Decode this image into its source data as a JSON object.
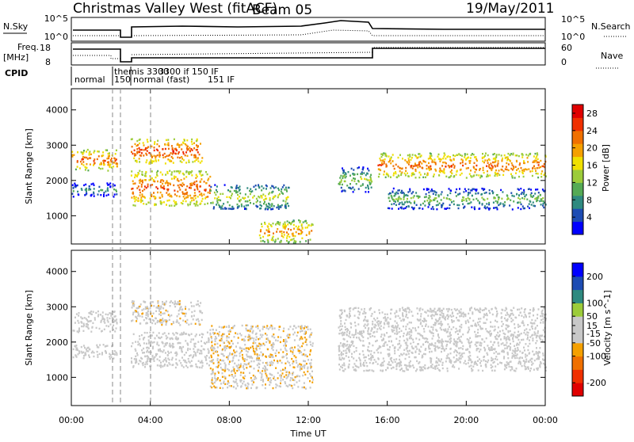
{
  "header": {
    "title": "Christmas Valley West (fitACF)",
    "beam": "Beam 05",
    "date": "19/May/2011"
  },
  "noise_panel": {
    "left_label": "N.Sky",
    "left_ticks": [
      "10^5",
      "10^0"
    ],
    "right_ticks": [
      "10^5",
      "10^0"
    ],
    "right_label": "N.Search"
  },
  "freq_panel": {
    "left_label_1": "Freq.",
    "left_label_2": "[MHz]",
    "left_ticks": [
      "18",
      "8"
    ],
    "right_ticks": [
      "60",
      "0"
    ],
    "right_label": "Nave"
  },
  "cpid": {
    "label": "CPID",
    "segments": [
      "normal",
      "themis 3300",
      "150",
      "normal (fast)",
      "3300 if 150 IF",
      "151 IF"
    ]
  },
  "chart_data": [
    {
      "type": "heatmap",
      "title": "Power",
      "xlabel": "",
      "ylabel": "Slant Range [km]",
      "x_ticks": [
        "00:00",
        "04:00",
        "08:00",
        "12:00",
        "16:00",
        "20:00",
        "00:00"
      ],
      "xlim_hours": [
        0,
        24
      ],
      "ylim": [
        200,
        4600
      ],
      "y_ticks": [
        "1000",
        "2000",
        "3000",
        "4000"
      ],
      "y_tick_values": [
        1000,
        2000,
        3000,
        4000
      ],
      "colorbar_label": "Power [dB]",
      "colorbar_ticks": [
        "28",
        "24",
        "20",
        "16",
        "12",
        "8",
        "4"
      ],
      "colorbar_range": [
        0,
        30
      ],
      "colorbar_colors": [
        "#0000ff",
        "#1d4cb3",
        "#2f8a80",
        "#55aa55",
        "#9ccc3a",
        "#f0e000",
        "#f5a000",
        "#f07000",
        "#f03000",
        "#e00000"
      ],
      "features": [
        {
          "t0": 0.0,
          "t1": 2.3,
          "r0": 2300,
          "r1": 2900,
          "power": 24
        },
        {
          "t0": 0.0,
          "t1": 2.3,
          "r0": 1550,
          "r1": 1950,
          "power": 10
        },
        {
          "t0": 3.0,
          "t1": 6.6,
          "r0": 2500,
          "r1": 3200,
          "power": 26
        },
        {
          "t0": 3.0,
          "t1": 7.0,
          "r0": 1300,
          "r1": 2300,
          "power": 25
        },
        {
          "t0": 7.0,
          "t1": 11.0,
          "r0": 1200,
          "r1": 1900,
          "power": 16
        },
        {
          "t0": 9.5,
          "t1": 12.2,
          "r0": 250,
          "r1": 900,
          "power": 22
        },
        {
          "t0": 13.5,
          "t1": 15.2,
          "r0": 1700,
          "r1": 2400,
          "power": 14
        },
        {
          "t0": 15.5,
          "t1": 24.0,
          "r0": 2100,
          "r1": 2800,
          "power": 24
        },
        {
          "t0": 16.0,
          "t1": 24.0,
          "r0": 1200,
          "r1": 1800,
          "power": 13
        }
      ]
    },
    {
      "type": "heatmap",
      "title": "Velocity",
      "xlabel": "Time UT",
      "ylabel": "Slant Range [km]",
      "x_ticks": [
        "00:00",
        "04:00",
        "08:00",
        "12:00",
        "16:00",
        "20:00",
        "00:00"
      ],
      "xlim_hours": [
        0,
        24
      ],
      "ylim": [
        200,
        4600
      ],
      "y_ticks": [
        "1000",
        "2000",
        "3000",
        "4000"
      ],
      "y_tick_values": [
        1000,
        2000,
        3000,
        4000
      ],
      "colorbar_label": "Velocity [m s^-1]",
      "colorbar_ticks": [
        "200",
        "100",
        "50",
        "15",
        "-15",
        "-50",
        "-100",
        "-200"
      ],
      "colorbar_range": [
        -250,
        250
      ],
      "colorbar_colors": [
        "#e00000",
        "#f03000",
        "#f07000",
        "#f5a000",
        "#c8c8c8",
        "#c8c8c8",
        "#9ccc3a",
        "#2f8a80",
        "#1d4cb3",
        "#0000ff"
      ],
      "features": [
        {
          "t0": 0.0,
          "t1": 2.3,
          "r0": 2300,
          "r1": 2900,
          "velocity": 0
        },
        {
          "t0": 0.0,
          "t1": 2.3,
          "r0": 1550,
          "r1": 1950,
          "velocity": 0
        },
        {
          "t0": 3.0,
          "t1": 6.6,
          "r0": 2500,
          "r1": 3200,
          "velocity": -40
        },
        {
          "t0": 3.0,
          "t1": 7.0,
          "r0": 1300,
          "r1": 2300,
          "velocity": 0
        },
        {
          "t0": 7.0,
          "t1": 12.2,
          "r0": 700,
          "r1": 2500,
          "velocity": -45
        },
        {
          "t0": 13.5,
          "t1": 24.0,
          "r0": 1200,
          "r1": 3000,
          "velocity": 0
        }
      ]
    }
  ]
}
